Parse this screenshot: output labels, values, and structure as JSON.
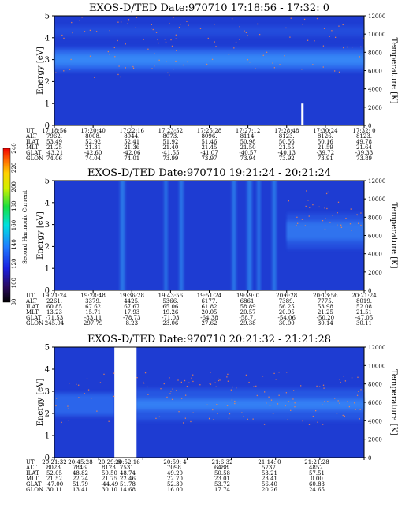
{
  "chart_data": [
    {
      "type": "heatmap",
      "title": "EXOS-D/TED   Date:970710  17:18:56 - 17:32: 0",
      "ylabel": "Energy [eV]",
      "ylim": [
        0,
        5
      ],
      "y_ticks": [
        "0",
        "1",
        "2",
        "3",
        "4",
        "5"
      ],
      "y2label": "Temperature [K]",
      "y2lim": [
        0,
        12000
      ],
      "y2_ticks": [
        "0",
        "2000",
        "4000",
        "6000",
        "8000",
        "10000",
        "12000"
      ],
      "row_labels": [
        "UT",
        "ALT",
        "ILAT",
        "MLT",
        "GLAT",
        "GLON"
      ],
      "columns": [
        [
          "17:18:56",
          "7962.",
          "53.49",
          "21.25",
          "-43.21",
          "74.06"
        ],
        [
          "17:20:40",
          "8008.",
          "52.92",
          "21.31",
          "-42.60",
          "74.04"
        ],
        [
          "17:22:16",
          "8044.",
          "52.41",
          "21.36",
          "-42.06",
          "74.01"
        ],
        [
          "17:23:52",
          "8073.",
          "51.92",
          "21.40",
          "-41.55",
          "73.99"
        ],
        [
          "17:25:28",
          "8096.",
          "51.46",
          "21.45",
          "-41.07",
          "73.97"
        ],
        [
          "17:27:12",
          "8114.",
          "50.98",
          "21.50",
          "-40.57",
          "73.94"
        ],
        [
          "17:28:48",
          "8123.",
          "50.56",
          "21.55",
          "-40.13",
          "73.92"
        ],
        [
          "17:30:24",
          "8126.",
          "50.16",
          "21.59",
          "-39.72",
          "73.91"
        ],
        [
          "17:32: 0",
          "8123.",
          "49.78",
          "21.64",
          "-39.33",
          "73.89"
        ]
      ],
      "band_center_ev": 3.0,
      "band_center_k": 7000,
      "peak_marker": {
        "time": "17:28:48",
        "energy_ev": 1.0
      }
    },
    {
      "type": "heatmap",
      "title": "EXOS-D/TED   Date:970710  19:21:24 - 20:21:24",
      "ylabel": "Energy [eV]",
      "ylim": [
        0,
        5
      ],
      "y_ticks": [
        "0",
        "1",
        "2",
        "3",
        "4",
        "5"
      ],
      "y2label": "Temperature [K]",
      "y2lim": [
        0,
        12000
      ],
      "y2_ticks": [
        "0",
        "2000",
        "4000",
        "6000",
        "8000",
        "10000",
        "12000"
      ],
      "colorbar": {
        "label": "Second Harmonic Current",
        "ticks": [
          "80",
          "100",
          "120",
          "140",
          "160",
          "180",
          "200",
          "220",
          "240"
        ],
        "range": [
          80,
          240
        ]
      },
      "row_labels": [
        "UT",
        "ALT",
        "ILAT",
        "MLT",
        "GLAT",
        "GLON"
      ],
      "columns": [
        [
          "19:21:24",
          "2261.",
          "60.85",
          "13.23",
          "-71.53",
          "245.04"
        ],
        [
          "19:28:48",
          "3379.",
          "67.62",
          "15.71",
          "-83.11",
          "297.79"
        ],
        [
          "19:36:28",
          "4425.",
          "67.67",
          "17.93",
          "-78.73",
          "8.23"
        ],
        [
          "19:43:56",
          "5366.",
          "65.06",
          "19.26",
          "-71.03",
          "23.06"
        ],
        [
          "19:51:24",
          "6177.",
          "61.82",
          "20.05",
          "-64.38",
          "27.62"
        ],
        [
          "19:59: 0",
          "6861.",
          "58.89",
          "20.57",
          "-58.71",
          "29.38"
        ],
        [
          "20:6:28",
          "7389.",
          "56.25",
          "20.95",
          "-54.06",
          "30.00"
        ],
        [
          "20:13:56",
          "7775.",
          "53.98",
          "21.25",
          "-50.20",
          "30.14"
        ],
        [
          "20:21:24",
          "8019.",
          "52.08",
          "21.51",
          "-47.05",
          "30.11"
        ]
      ],
      "band_center_ev": 2.7,
      "band_center_k": 6500
    },
    {
      "type": "heatmap",
      "title": "EXOS-D/TED   Date:970710  20:21:32 - 21:21:28",
      "ylabel": "Energy [eV]",
      "ylim": [
        0,
        5
      ],
      "y_ticks": [
        "0",
        "1",
        "2",
        "3",
        "4",
        "5"
      ],
      "y2label": "Temperature [K]",
      "y2lim": [
        0,
        12000
      ],
      "y2_ticks": [
        "0",
        "2000",
        "4000",
        "6000",
        "8000",
        "10000",
        "12000"
      ],
      "row_labels": [
        "UT",
        "ALT",
        "ILAT",
        "MLT",
        "GLAT",
        "GLON"
      ],
      "columns": [
        [
          "20:21:32",
          "8023.",
          "52.05",
          "21.52",
          "-47.00",
          "30.11"
        ],
        [
          "20:29: 8",
          "8123.",
          "50.50",
          "21.75",
          "-44.49",
          "30.10"
        ],
        [
          "20:45:28",
          "7846.",
          "48.82",
          "22.24",
          "51.79",
          "13.41"
        ],
        [
          "20:52:16",
          "7531.",
          "48.74",
          "22.46",
          "51.78",
          "14.68"
        ],
        [
          "20:59: 4",
          "7098.",
          "49.20",
          "22.70",
          "52.30",
          "16.00"
        ],
        [
          "21:6:32",
          "6488.",
          "50.58",
          "23.01",
          "53.72",
          "17.74"
        ],
        [
          "21:14: 0",
          "5737.",
          "53.21",
          "23.41",
          "56.40",
          "20.26"
        ],
        [
          "21:21:28",
          "4852.",
          "57.51",
          "0.00",
          "60.83",
          "24.65"
        ]
      ],
      "data_gap": [
        "20:29: 8",
        "20:45:28"
      ],
      "band_center_ev": 2.4,
      "band_center_k": 6000
    }
  ],
  "colors": {
    "background": "#1e3cd2",
    "band_mid": "#2f6df0",
    "band_core": "#3fa2ff",
    "streak": "#2d8cf0",
    "gap": "#ffffff",
    "speckle": "#ff8844"
  }
}
